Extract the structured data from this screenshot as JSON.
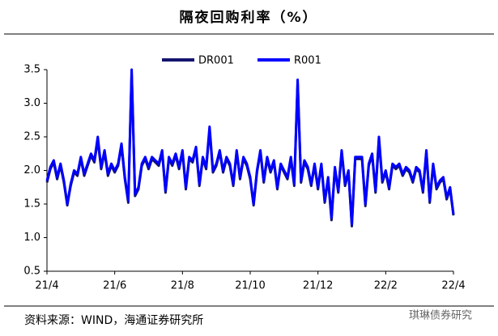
{
  "chart_data": {
    "type": "line",
    "title": "隔夜回购利率（%）",
    "source": "资料来源：WIND，海通证券研究所",
    "watermark": "琪琳债券研究",
    "categories": [
      "21/4",
      null,
      null,
      null,
      null,
      null,
      null,
      null,
      null,
      null,
      null,
      null,
      null,
      null,
      null,
      null,
      null,
      null,
      null,
      null,
      "21/6",
      null,
      null,
      null,
      null,
      null,
      null,
      null,
      null,
      null,
      null,
      null,
      null,
      null,
      null,
      null,
      null,
      null,
      null,
      null,
      "21/8",
      null,
      null,
      null,
      null,
      null,
      null,
      null,
      null,
      null,
      null,
      null,
      null,
      null,
      null,
      null,
      null,
      null,
      null,
      null,
      "21/10",
      null,
      null,
      null,
      null,
      null,
      null,
      null,
      null,
      null,
      null,
      null,
      null,
      null,
      null,
      null,
      null,
      null,
      null,
      null,
      "21/12",
      null,
      null,
      null,
      null,
      null,
      null,
      null,
      null,
      null,
      null,
      null,
      null,
      null,
      null,
      null,
      null,
      null,
      null,
      null,
      "22/2",
      null,
      null,
      null,
      null,
      null,
      null,
      null,
      null,
      null,
      null,
      null,
      null,
      null,
      null,
      null,
      null,
      null,
      null,
      null,
      "22/4"
    ],
    "series": [
      {
        "name": "DR001",
        "color": "#14146e",
        "values": [
          1.82,
          2.02,
          2.12,
          1.87,
          2.07,
          1.82,
          1.48,
          1.77,
          1.97,
          1.92,
          2.17,
          1.92,
          2.07,
          2.22,
          2.12,
          2.45,
          2.02,
          2.27,
          1.92,
          2.07,
          1.97,
          2.07,
          2.36,
          1.87,
          1.52,
          3.45,
          1.62,
          1.72,
          2.07,
          2.17,
          2.02,
          2.17,
          2.12,
          2.07,
          2.27,
          1.67,
          2.17,
          2.07,
          2.22,
          2.02,
          2.27,
          1.72,
          2.17,
          2.12,
          2.32,
          1.77,
          2.17,
          2.02,
          2.6,
          1.97,
          2.07,
          2.27,
          1.97,
          2.17,
          2.07,
          1.77,
          2.27,
          1.87,
          2.17,
          2.07,
          1.87,
          1.48,
          1.97,
          2.27,
          1.82,
          2.17,
          1.97,
          2.12,
          1.72,
          2.07,
          1.97,
          1.87,
          2.17,
          1.77,
          3.3,
          1.82,
          2.12,
          2.02,
          1.77,
          2.07,
          1.72,
          2.07,
          1.52,
          1.87,
          1.26,
          2.02,
          1.67,
          2.27,
          1.77,
          1.97,
          1.17,
          2.17,
          2.17,
          2.17,
          1.47,
          2.07,
          2.22,
          1.67,
          2.45,
          1.82,
          1.97,
          1.72,
          2.07,
          2.02,
          2.07,
          1.92,
          2.02,
          1.97,
          1.82,
          2.02,
          1.97,
          1.67,
          2.27,
          1.52,
          2.07,
          1.72,
          1.82,
          1.87,
          1.57,
          1.72,
          1.33
        ]
      },
      {
        "name": "R001",
        "color": "#0000ff",
        "values": [
          1.85,
          2.05,
          2.15,
          1.9,
          2.1,
          1.85,
          1.5,
          1.8,
          2.0,
          1.95,
          2.2,
          1.95,
          2.1,
          2.25,
          2.15,
          2.5,
          2.05,
          2.3,
          1.95,
          2.1,
          2.0,
          2.1,
          2.4,
          1.9,
          1.55,
          3.5,
          1.65,
          1.75,
          2.1,
          2.2,
          2.05,
          2.2,
          2.15,
          2.1,
          2.3,
          1.7,
          2.2,
          2.1,
          2.25,
          2.05,
          2.3,
          1.75,
          2.2,
          2.15,
          2.35,
          1.8,
          2.2,
          2.05,
          2.65,
          2.0,
          2.1,
          2.3,
          2.0,
          2.2,
          2.1,
          1.8,
          2.3,
          1.9,
          2.2,
          2.1,
          1.9,
          1.5,
          2.0,
          2.3,
          1.85,
          2.2,
          2.0,
          2.15,
          1.75,
          2.1,
          2.0,
          1.9,
          2.2,
          1.8,
          3.35,
          1.85,
          2.15,
          2.05,
          1.8,
          2.1,
          1.75,
          2.1,
          1.55,
          1.9,
          1.3,
          2.05,
          1.7,
          2.3,
          1.8,
          2.0,
          1.2,
          2.2,
          2.2,
          2.2,
          1.5,
          2.1,
          2.25,
          1.7,
          2.5,
          1.85,
          2.0,
          1.75,
          2.1,
          2.05,
          2.1,
          1.95,
          2.05,
          2.0,
          1.85,
          2.05,
          2.0,
          1.7,
          2.3,
          1.55,
          2.1,
          1.75,
          1.85,
          1.9,
          1.6,
          1.75,
          1.35
        ]
      }
    ],
    "ylim": [
      0.5,
      3.5
    ],
    "yticks": [
      0.5,
      {
        "value": 1,
        "label": "1.0"
      },
      1.5,
      {
        "value": 2,
        "label": "2.0"
      },
      2.5,
      {
        "value": 3,
        "label": "3.0"
      },
      3.5
    ],
    "grid": false,
    "legend": "top"
  }
}
